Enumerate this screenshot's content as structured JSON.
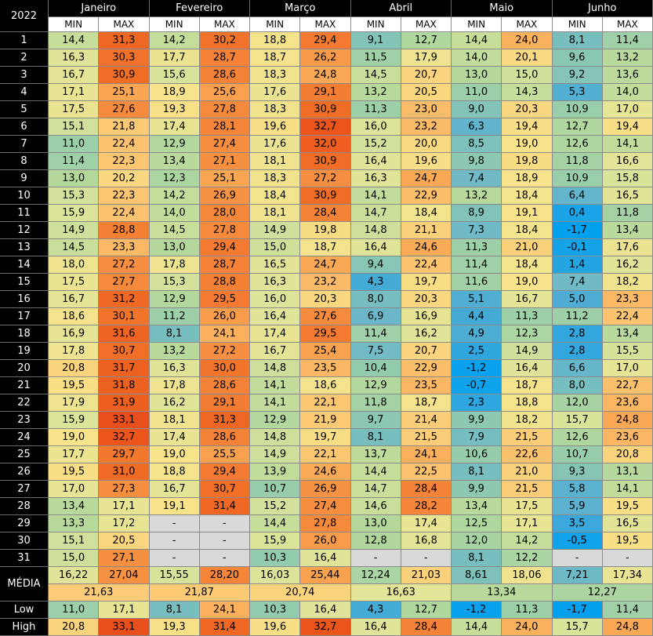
{
  "table": {
    "corner": "2022",
    "months": [
      "Janeiro",
      "Fevereiro",
      "Março",
      "Abril",
      "Maio",
      "Junho"
    ],
    "subheader": [
      "MIN",
      "MAX",
      "MIN",
      "MAX",
      "MIN",
      "MAX",
      "MIN",
      "MAX",
      "MIN",
      "MAX",
      "MIN",
      "MAX"
    ],
    "rows": [
      {
        "day": "1",
        "cells": [
          "14,4",
          "31,3",
          "14,2",
          "30,2",
          "18,8",
          "29,4",
          "9,1",
          "12,7",
          "14,4",
          "24,0",
          "8,1",
          "11,4"
        ]
      },
      {
        "day": "2",
        "cells": [
          "16,3",
          "30,3",
          "17,7",
          "28,7",
          "18,7",
          "26,2",
          "11,5",
          "17,9",
          "14,0",
          "20,1",
          "9,6",
          "13,2"
        ]
      },
      {
        "day": "3",
        "cells": [
          "16,7",
          "30,9",
          "15,6",
          "28,6",
          "18,3",
          "24,8",
          "14,5",
          "20,7",
          "13,0",
          "15,0",
          "9,2",
          "13,6"
        ]
      },
      {
        "day": "4",
        "cells": [
          "17,1",
          "25,1",
          "18,9",
          "25,6",
          "17,6",
          "29,1",
          "13,2",
          "20,5",
          "11,0",
          "14,3",
          "5,3",
          "14,0"
        ]
      },
      {
        "day": "5",
        "cells": [
          "17,5",
          "27,6",
          "19,3",
          "27,8",
          "18,3",
          "30,9",
          "11,3",
          "23,0",
          "9,0",
          "20,3",
          "10,9",
          "17,0"
        ]
      },
      {
        "day": "6",
        "cells": [
          "15,1",
          "21,8",
          "17,4",
          "28,1",
          "19,6",
          "32,7",
          "16,0",
          "23,2",
          "6,3",
          "19,4",
          "12,7",
          "19,4"
        ]
      },
      {
        "day": "7",
        "cells": [
          "11,0",
          "22,4",
          "12,9",
          "27,4",
          "17,6",
          "32,0",
          "15,2",
          "20,0",
          "8,5",
          "19,0",
          "12,6",
          "14,1"
        ]
      },
      {
        "day": "8",
        "cells": [
          "11,4",
          "22,3",
          "13,4",
          "27,1",
          "18,1",
          "30,9",
          "16,4",
          "19,6",
          "9,8",
          "19,8",
          "11,8",
          "16,6"
        ]
      },
      {
        "day": "9",
        "cells": [
          "13,0",
          "20,2",
          "12,3",
          "25,1",
          "18,3",
          "27,2",
          "16,3",
          "24,7",
          "7,4",
          "18,9",
          "10,9",
          "15,8"
        ]
      },
      {
        "day": "10",
        "cells": [
          "15,3",
          "22,3",
          "14,2",
          "26,9",
          "18,4",
          "30,9",
          "14,1",
          "22,9",
          "13,2",
          "18,4",
          "6,4",
          "16,5"
        ]
      },
      {
        "day": "11",
        "cells": [
          "15,9",
          "22,4",
          "14,0",
          "28,0",
          "18,1",
          "28,4",
          "14,7",
          "18,4",
          "8,9",
          "19,1",
          "0,4",
          "11,8"
        ]
      },
      {
        "day": "12",
        "cells": [
          "14,9",
          "28,8",
          "14,5",
          "27,8",
          "14,9",
          "19,8",
          "14,8",
          "21,1",
          "7,3",
          "18,4",
          "-1,7",
          "13,4"
        ]
      },
      {
        "day": "13",
        "cells": [
          "14,5",
          "23,3",
          "13,0",
          "29,4",
          "15,0",
          "18,7",
          "16,4",
          "24,6",
          "11,3",
          "21,0",
          "-0,1",
          "17,6"
        ]
      },
      {
        "day": "14",
        "cells": [
          "18,0",
          "27,2",
          "17,8",
          "28,7",
          "16,5",
          "24,7",
          "9,4",
          "22,4",
          "11,4",
          "18,4",
          "1,4",
          "16,2"
        ]
      },
      {
        "day": "15",
        "cells": [
          "17,5",
          "27,7",
          "15,3",
          "28,8",
          "16,3",
          "23,2",
          "4,3",
          "19,7",
          "11,6",
          "19,0",
          "7,4",
          "18,2"
        ]
      },
      {
        "day": "16",
        "cells": [
          "16,7",
          "31,2",
          "12,9",
          "29,5",
          "16,0",
          "20,3",
          "8,0",
          "20,3",
          "5,1",
          "16,7",
          "5,0",
          "23,3"
        ]
      },
      {
        "day": "17",
        "cells": [
          "18,6",
          "30,1",
          "11,2",
          "26,0",
          "16,4",
          "27,6",
          "6,9",
          "16,9",
          "4,4",
          "11,3",
          "11,2",
          "22,4"
        ]
      },
      {
        "day": "18",
        "cells": [
          "16,9",
          "31,6",
          "8,1",
          "24,1",
          "17,4",
          "29,5",
          "11,4",
          "16,2",
          "4,9",
          "12,3",
          "2,8",
          "13,4"
        ]
      },
      {
        "day": "19",
        "cells": [
          "17,8",
          "30,7",
          "13,2",
          "27,2",
          "16,7",
          "25,4",
          "7,5",
          "20,7",
          "2,5",
          "14,9",
          "2,8",
          "15,5"
        ]
      },
      {
        "day": "20",
        "cells": [
          "20,8",
          "31,7",
          "16,3",
          "30,0",
          "14,8",
          "23,5",
          "10,4",
          "22,9",
          "-1,2",
          "16,4",
          "6,6",
          "17,0"
        ]
      },
      {
        "day": "21",
        "cells": [
          "19,5",
          "31,8",
          "17,8",
          "28,6",
          "14,1",
          "18,6",
          "12,9",
          "23,5",
          "-0,7",
          "18,7",
          "8,0",
          "22,7"
        ]
      },
      {
        "day": "22",
        "cells": [
          "17,9",
          "31,9",
          "16,2",
          "29,1",
          "14,1",
          "22,1",
          "11,8",
          "18,7",
          "2,3",
          "18,8",
          "12,0",
          "23,6"
        ]
      },
      {
        "day": "23",
        "cells": [
          "15,9",
          "33,1",
          "18,1",
          "31,3",
          "12,9",
          "21,9",
          "9,7",
          "21,4",
          "9,9",
          "18,2",
          "15,7",
          "24,8"
        ]
      },
      {
        "day": "24",
        "cells": [
          "19,0",
          "32,7",
          "17,4",
          "28,6",
          "14,8",
          "19,7",
          "8,1",
          "21,5",
          "7,9",
          "21,5",
          "12,6",
          "23,6"
        ]
      },
      {
        "day": "25",
        "cells": [
          "17,7",
          "29,7",
          "19,0",
          "25,5",
          "14,9",
          "22,1",
          "13,7",
          "24,1",
          "10,6",
          "22,6",
          "10,7",
          "20,8"
        ]
      },
      {
        "day": "26",
        "cells": [
          "19,5",
          "31,0",
          "18,8",
          "29,4",
          "13,9",
          "24,6",
          "14,4",
          "22,5",
          "8,1",
          "21,0",
          "9,3",
          "13,1"
        ]
      },
      {
        "day": "27",
        "cells": [
          "17,0",
          "27,3",
          "16,7",
          "30,7",
          "10,7",
          "26,9",
          "14,7",
          "28,4",
          "9,9",
          "21,5",
          "5,8",
          "14,1"
        ]
      },
      {
        "day": "28",
        "cells": [
          "13,4",
          "17,1",
          "19,1",
          "31,4",
          "15,2",
          "27,4",
          "14,6",
          "28,2",
          "13,4",
          "17,5",
          "5,9",
          "19,5"
        ]
      },
      {
        "day": "29",
        "cells": [
          "13,3",
          "17,2",
          "-",
          "-",
          "14,4",
          "27,8",
          "13,0",
          "17,4",
          "12,5",
          "17,1",
          "3,5",
          "16,5"
        ]
      },
      {
        "day": "30",
        "cells": [
          "15,1",
          "20,5",
          "-",
          "-",
          "15,9",
          "26,0",
          "12,8",
          "16,8",
          "12,0",
          "14,2",
          "-0,5",
          "19,5"
        ]
      },
      {
        "day": "31",
        "cells": [
          "15,0",
          "27,1",
          "-",
          "-",
          "10,3",
          "16,4",
          "-",
          "-",
          "8,1",
          "12,2",
          "-",
          "-"
        ]
      }
    ],
    "media_label": "MÉDIA",
    "media": [
      "16,22",
      "27,04",
      "15,55",
      "28,20",
      "16,03",
      "25,44",
      "12,24",
      "21,03",
      "8,61",
      "18,06",
      "7,21",
      "17,34"
    ],
    "averages": [
      "21,63",
      "21,87",
      "20,74",
      "16,63",
      "13,34",
      "12,27"
    ],
    "low_label": "Low",
    "low": [
      "11,0",
      "17,1",
      "8,1",
      "24,1",
      "10,3",
      "16,4",
      "4,3",
      "12,7",
      "-1,2",
      "11,3",
      "-1,7",
      "11,4"
    ],
    "high_label": "High",
    "high": [
      "20,8",
      "33,1",
      "19,3",
      "31,4",
      "19,6",
      "32,7",
      "16,4",
      "28,4",
      "14,4",
      "24,0",
      "15,7",
      "24,8"
    ]
  }
}
